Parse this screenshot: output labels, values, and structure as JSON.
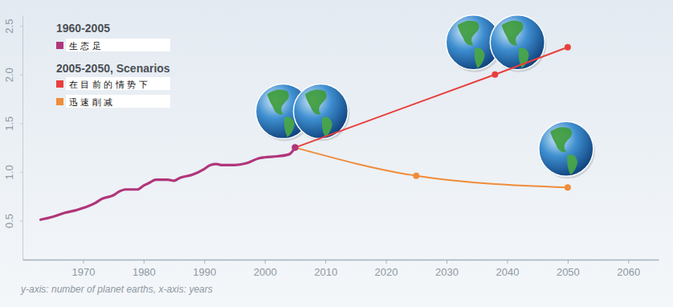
{
  "chart_data": {
    "type": "line",
    "legend_titles": [
      "1960-2005",
      "2005-2050, Scenarios"
    ],
    "caption": "y-axis: number of planet earths, x-axis: years",
    "series": [
      {
        "name": "生 态 足",
        "color": "#b0367a",
        "x": [
          1963,
          1965,
          1967,
          1969,
          1970,
          1972,
          1973,
          1975,
          1976,
          1977,
          1979,
          1980,
          1981,
          1982,
          1984,
          1985,
          1986,
          1988,
          1990,
          1991,
          1992,
          1993,
          1995,
          1997,
          1999,
          2000,
          2002,
          2004,
          2005
        ],
        "values": [
          0.51,
          0.54,
          0.58,
          0.61,
          0.63,
          0.68,
          0.72,
          0.76,
          0.8,
          0.82,
          0.82,
          0.86,
          0.89,
          0.92,
          0.92,
          0.91,
          0.94,
          0.97,
          1.03,
          1.07,
          1.08,
          1.07,
          1.07,
          1.09,
          1.14,
          1.15,
          1.16,
          1.18,
          1.25
        ]
      },
      {
        "name": "在 目 前 的 情 势 下",
        "color": "#e8403c",
        "marker": "circle",
        "x": [
          2005,
          2038,
          2050
        ],
        "values": [
          1.25,
          2.0,
          2.28
        ]
      },
      {
        "name": "迅 速 削 减",
        "color": "#f08c3a",
        "marker": "circle",
        "x": [
          2005,
          2025,
          2050
        ],
        "values": [
          1.25,
          0.96,
          0.84
        ]
      }
    ],
    "xlim": [
      1960,
      2065
    ],
    "xticks": [
      1970,
      1980,
      1990,
      2000,
      2010,
      2020,
      2030,
      2040,
      2050,
      2060
    ],
    "ylim": [
      0.1,
      2.6
    ],
    "yticks": [
      {
        "value": 0.5,
        "label": "0.5"
      },
      {
        "value": 1,
        "label": "1.0"
      },
      {
        "value": 1.5,
        "label": "1.5"
      },
      {
        "value": 2,
        "label": "2.0"
      },
      {
        "value": 2.5,
        "label": "2.5"
      }
    ],
    "grid": false,
    "legend": "top-left"
  }
}
